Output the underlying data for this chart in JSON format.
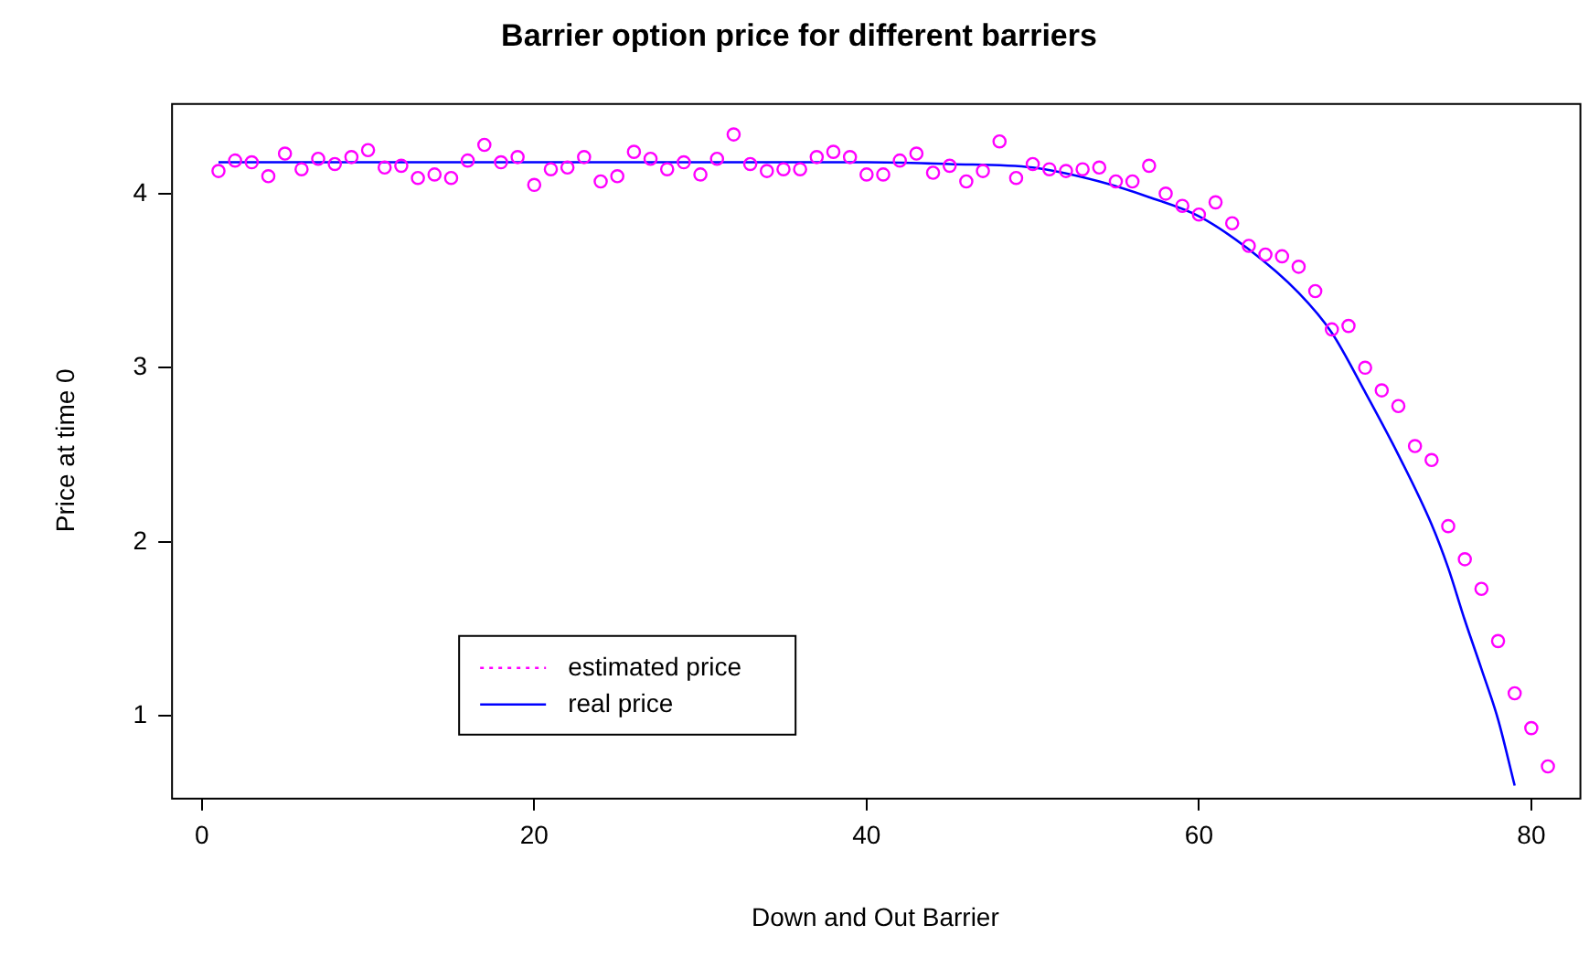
{
  "chart_data": {
    "type": "scatter",
    "title": "Barrier option price for different barriers",
    "xlabel": "Down and Out Barrier",
    "ylabel": "Price at time 0",
    "xlim": [
      -1.85,
      82.9
    ],
    "xticks": [
      0,
      20,
      40,
      60,
      80
    ],
    "ylim": [
      0.53,
      4.52
    ],
    "yticks": [
      1,
      2,
      3,
      4
    ],
    "grid": false,
    "legend": "bottom left",
    "series": [
      {
        "name": "estimated price",
        "marker": "circle",
        "color": "#ff00ff",
        "x": [
          1,
          2,
          3,
          4,
          5,
          6,
          7,
          8,
          9,
          10,
          11,
          12,
          13,
          14,
          15,
          16,
          17,
          18,
          19,
          20,
          21,
          22,
          23,
          24,
          25,
          26,
          27,
          28,
          29,
          30,
          31,
          32,
          33,
          34,
          35,
          36,
          37,
          38,
          39,
          40,
          41,
          42,
          43,
          44,
          45,
          46,
          47,
          48,
          49,
          50,
          51,
          52,
          53,
          54,
          55,
          56,
          57,
          58,
          59,
          60,
          61,
          62,
          63,
          64,
          65,
          66,
          67,
          68,
          69,
          70,
          71,
          72,
          73,
          74,
          75,
          76,
          77,
          78,
          79,
          80,
          81
        ],
        "values": [
          4.13,
          4.19,
          4.18,
          4.1,
          4.23,
          4.14,
          4.2,
          4.17,
          4.21,
          4.25,
          4.15,
          4.16,
          4.09,
          4.11,
          4.09,
          4.19,
          4.28,
          4.18,
          4.21,
          4.05,
          4.14,
          4.15,
          4.21,
          4.07,
          4.1,
          4.24,
          4.2,
          4.14,
          4.18,
          4.11,
          4.2,
          4.34,
          4.17,
          4.13,
          4.14,
          4.14,
          4.21,
          4.24,
          4.21,
          4.11,
          4.11,
          4.19,
          4.23,
          4.12,
          4.16,
          4.07,
          4.13,
          4.3,
          4.09,
          4.17,
          4.14,
          4.13,
          4.14,
          4.15,
          4.07,
          4.07,
          4.16,
          4.0,
          3.93,
          3.88,
          3.95,
          3.83,
          3.7,
          3.65,
          3.64,
          3.58,
          3.44,
          3.22,
          3.24,
          3.0,
          2.87,
          2.78,
          2.55,
          2.47,
          2.09,
          1.9,
          1.73,
          1.43,
          1.13,
          0.93,
          0.71
        ]
      },
      {
        "name": "real price",
        "type": "line",
        "marker": "none",
        "line_style": "solid",
        "color": "#0000ff",
        "x": [
          1,
          40,
          45,
          50,
          54,
          57,
          60,
          63,
          66,
          68,
          70,
          72,
          74,
          75,
          76,
          77,
          78,
          79
        ],
        "values": [
          4.18,
          4.18,
          4.17,
          4.15,
          4.07,
          3.98,
          3.87,
          3.68,
          3.43,
          3.2,
          2.86,
          2.5,
          2.1,
          1.85,
          1.55,
          1.27,
          0.98,
          0.6
        ]
      }
    ]
  }
}
